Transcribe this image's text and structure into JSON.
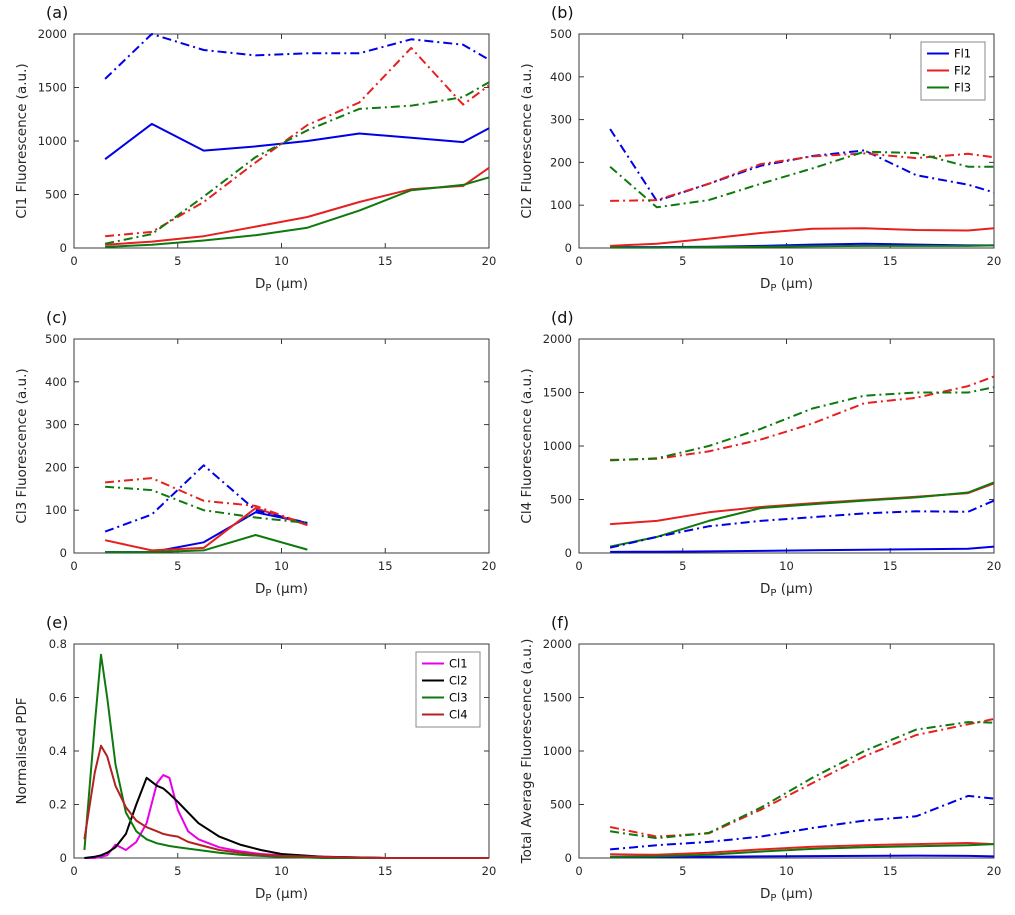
{
  "figure": {
    "background": "#ffffff"
  },
  "palette": {
    "blue": "#0000E6",
    "red": "#E62020",
    "green": "#0E7A0E",
    "magenta": "#E800E8",
    "black": "#000000",
    "darkred": "#B22222"
  },
  "charts": [
    {
      "panel_label": "(a)",
      "type": "line",
      "ylabel": "Cl1 Fluorescence (a.u.)",
      "xlabel_parts": {
        "pre": "D",
        "sub": "P",
        "post": " (μm)"
      },
      "xlim": [
        0,
        20
      ],
      "ylim": [
        0,
        2000
      ],
      "xticks": [
        0,
        5,
        10,
        15,
        20
      ],
      "yticks": [
        0,
        500,
        1000,
        1500,
        2000
      ],
      "x": [
        1.5,
        3.75,
        6.25,
        8.75,
        11.25,
        13.75,
        16.25,
        18.75,
        20
      ],
      "series": [
        {
          "name": "Fl1-solid",
          "color": "#0000E6",
          "style": "solid",
          "values": [
            830,
            1160,
            910,
            950,
            1000,
            1070,
            1030,
            990,
            1120
          ]
        },
        {
          "name": "Fl2-solid",
          "color": "#E62020",
          "style": "solid",
          "values": [
            30,
            60,
            110,
            200,
            290,
            430,
            550,
            580,
            750
          ]
        },
        {
          "name": "Fl3-solid",
          "color": "#0E7A0E",
          "style": "solid",
          "values": [
            10,
            30,
            70,
            120,
            190,
            350,
            540,
            590,
            660
          ]
        },
        {
          "name": "Fl1-dashdot",
          "color": "#0000E6",
          "style": "dashdot",
          "values": [
            1580,
            2000,
            1850,
            1800,
            1820,
            1820,
            1950,
            1900,
            1760
          ]
        },
        {
          "name": "Fl2-dashdot",
          "color": "#E62020",
          "style": "dashdot",
          "values": [
            110,
            150,
            430,
            800,
            1150,
            1360,
            1870,
            1340,
            1520
          ]
        },
        {
          "name": "Fl3-dashdot",
          "color": "#0E7A0E",
          "style": "dashdot",
          "values": [
            40,
            130,
            480,
            850,
            1100,
            1300,
            1330,
            1410,
            1550
          ]
        }
      ],
      "legend": null
    },
    {
      "panel_label": "(b)",
      "type": "line",
      "ylabel": "Cl2 Fluorescence (a.u.)",
      "xlabel_parts": {
        "pre": "D",
        "sub": "P",
        "post": " (μm)"
      },
      "xlim": [
        0,
        20
      ],
      "ylim": [
        0,
        500
      ],
      "xticks": [
        0,
        5,
        10,
        15,
        20
      ],
      "yticks": [
        0,
        100,
        200,
        300,
        400,
        500
      ],
      "x": [
        1.5,
        3.75,
        6.25,
        8.75,
        11.25,
        13.75,
        16.25,
        18.75,
        20
      ],
      "series": [
        {
          "name": "Fl1-solid",
          "color": "#0000E6",
          "style": "solid",
          "values": [
            2,
            2,
            3,
            5,
            8,
            10,
            8,
            6,
            6
          ]
        },
        {
          "name": "Fl2-solid",
          "color": "#E62020",
          "style": "solid",
          "values": [
            5,
            10,
            22,
            35,
            45,
            46,
            42,
            41,
            46
          ]
        },
        {
          "name": "Fl3-solid",
          "color": "#0E7A0E",
          "style": "solid",
          "values": [
            1,
            1,
            2,
            3,
            4,
            5,
            5,
            5,
            6
          ]
        },
        {
          "name": "Fl1-dashdot",
          "color": "#0000E6",
          "style": "dashdot",
          "values": [
            278,
            110,
            150,
            192,
            215,
            228,
            170,
            148,
            130
          ]
        },
        {
          "name": "Fl2-dashdot",
          "color": "#E62020",
          "style": "dashdot",
          "values": [
            110,
            112,
            150,
            196,
            214,
            221,
            210,
            220,
            212
          ]
        },
        {
          "name": "Fl3-dashdot",
          "color": "#0E7A0E",
          "style": "dashdot",
          "values": [
            190,
            95,
            112,
            150,
            186,
            225,
            222,
            190,
            190
          ]
        }
      ],
      "legend": {
        "position": "ne",
        "entries": [
          {
            "label": "Fl1",
            "color": "#0000E6",
            "style": "solid"
          },
          {
            "label": "Fl2",
            "color": "#E62020",
            "style": "solid"
          },
          {
            "label": "Fl3",
            "color": "#0E7A0E",
            "style": "solid"
          }
        ]
      }
    },
    {
      "panel_label": "(c)",
      "type": "line",
      "ylabel": "Cl3 Fluorescence (a.u.)",
      "xlabel_parts": {
        "pre": "D",
        "sub": "P",
        "post": " (μm)"
      },
      "xlim": [
        0,
        20
      ],
      "ylim": [
        0,
        500
      ],
      "xticks": [
        0,
        5,
        10,
        15,
        20
      ],
      "yticks": [
        0,
        100,
        200,
        300,
        400,
        500
      ],
      "x": [
        1.5,
        3.75,
        6.25,
        8.75,
        11.25
      ],
      "series": [
        {
          "name": "Fl1-solid",
          "color": "#0000E6",
          "style": "solid",
          "values": [
            2,
            2,
            25,
            95,
            70
          ]
        },
        {
          "name": "Fl2-solid",
          "color": "#E62020",
          "style": "solid",
          "values": [
            30,
            6,
            12,
            105,
            65
          ]
        },
        {
          "name": "Fl3-solid",
          "color": "#0E7A0E",
          "style": "solid",
          "values": [
            2,
            2,
            6,
            42,
            8
          ]
        },
        {
          "name": "Fl1-dashdot",
          "color": "#0000E6",
          "style": "dashdot",
          "values": [
            50,
            90,
            205,
            100,
            70
          ]
        },
        {
          "name": "Fl2-dashdot",
          "color": "#E62020",
          "style": "dashdot",
          "values": [
            165,
            175,
            122,
            110,
            66
          ]
        },
        {
          "name": "Fl3-dashdot",
          "color": "#0E7A0E",
          "style": "dashdot",
          "values": [
            155,
            147,
            100,
            83,
            70
          ]
        }
      ],
      "legend": null
    },
    {
      "panel_label": "(d)",
      "type": "line",
      "ylabel": "Cl4 Fluorescence (a.u.)",
      "xlabel_parts": {
        "pre": "D",
        "sub": "P",
        "post": " (μm)"
      },
      "xlim": [
        0,
        20
      ],
      "ylim": [
        0,
        2000
      ],
      "xticks": [
        0,
        5,
        10,
        15,
        20
      ],
      "yticks": [
        0,
        500,
        1000,
        1500,
        2000
      ],
      "x": [
        1.5,
        3.75,
        6.25,
        8.75,
        11.25,
        13.75,
        16.25,
        18.75,
        20
      ],
      "series": [
        {
          "name": "Fl1-solid",
          "color": "#0000E6",
          "style": "solid",
          "values": [
            10,
            12,
            15,
            20,
            25,
            30,
            35,
            40,
            60
          ]
        },
        {
          "name": "Fl2-solid",
          "color": "#E62020",
          "style": "solid",
          "values": [
            270,
            300,
            380,
            430,
            465,
            495,
            525,
            560,
            650
          ]
        },
        {
          "name": "Fl3-solid",
          "color": "#0E7A0E",
          "style": "solid",
          "values": [
            60,
            150,
            300,
            420,
            455,
            490,
            520,
            565,
            660
          ]
        },
        {
          "name": "Fl1-dashdot",
          "color": "#0000E6",
          "style": "dashdot",
          "values": [
            50,
            150,
            250,
            300,
            335,
            370,
            390,
            385,
            490
          ]
        },
        {
          "name": "Fl2-dashdot",
          "color": "#E62020",
          "style": "dashdot",
          "values": [
            870,
            880,
            950,
            1060,
            1210,
            1400,
            1450,
            1560,
            1650
          ]
        },
        {
          "name": "Fl3-dashdot",
          "color": "#0E7A0E",
          "style": "dashdot",
          "values": [
            865,
            885,
            1000,
            1160,
            1350,
            1470,
            1500,
            1500,
            1550
          ]
        }
      ],
      "legend": null
    },
    {
      "panel_label": "(e)",
      "type": "line",
      "ylabel": "Normalised PDF",
      "xlabel_parts": {
        "pre": "D",
        "sub": "P",
        "post": " (μm)"
      },
      "xlim": [
        0,
        20
      ],
      "ylim": [
        0,
        0.8
      ],
      "xticks": [
        0,
        5,
        10,
        15,
        20
      ],
      "yticks": [
        0,
        0.2,
        0.4,
        0.6,
        0.8
      ],
      "x": [
        0.5,
        1,
        1.3,
        1.6,
        2,
        2.5,
        3,
        3.5,
        4,
        4.3,
        4.6,
        5,
        5.5,
        6,
        7,
        8,
        9,
        10,
        12,
        15,
        20
      ],
      "series": [
        {
          "name": "Cl1",
          "color": "#E800E8",
          "style": "solid",
          "values": [
            0,
            0,
            0.005,
            0.01,
            0.05,
            0.03,
            0.06,
            0.13,
            0.28,
            0.31,
            0.3,
            0.18,
            0.1,
            0.07,
            0.04,
            0.025,
            0.015,
            0.01,
            0.005,
            0,
            0
          ]
        },
        {
          "name": "Cl2",
          "color": "#000000",
          "style": "solid",
          "values": [
            0,
            0.005,
            0.01,
            0.02,
            0.04,
            0.09,
            0.2,
            0.3,
            0.27,
            0.26,
            0.24,
            0.21,
            0.17,
            0.13,
            0.08,
            0.05,
            0.03,
            0.015,
            0.005,
            0,
            0
          ]
        },
        {
          "name": "Cl3",
          "color": "#0E7A0E",
          "style": "solid",
          "values": [
            0.03,
            0.5,
            0.76,
            0.6,
            0.35,
            0.17,
            0.1,
            0.07,
            0.055,
            0.05,
            0.045,
            0.04,
            0.035,
            0.03,
            0.02,
            0.012,
            0.008,
            0.005,
            0,
            0,
            0
          ]
        },
        {
          "name": "Cl4",
          "color": "#B22222",
          "style": "solid",
          "values": [
            0.07,
            0.32,
            0.42,
            0.38,
            0.27,
            0.19,
            0.14,
            0.115,
            0.1,
            0.09,
            0.085,
            0.08,
            0.06,
            0.05,
            0.03,
            0.02,
            0.012,
            0.008,
            0.004,
            0,
            0
          ]
        }
      ],
      "legend": {
        "position": "ne",
        "entries": [
          {
            "label": "Cl1",
            "color": "#E800E8",
            "style": "solid"
          },
          {
            "label": "Cl2",
            "color": "#000000",
            "style": "solid"
          },
          {
            "label": "Cl3",
            "color": "#0E7A0E",
            "style": "solid"
          },
          {
            "label": "Cl4",
            "color": "#B22222",
            "style": "solid"
          }
        ]
      }
    },
    {
      "panel_label": "(f)",
      "type": "line",
      "ylabel": "Total Average Fluorescence (a.u.)",
      "xlabel_parts": {
        "pre": "D",
        "sub": "P",
        "post": " (μm)"
      },
      "xlim": [
        0,
        20
      ],
      "ylim": [
        0,
        2000
      ],
      "xticks": [
        0,
        5,
        10,
        15,
        20
      ],
      "yticks": [
        0,
        500,
        1000,
        1500,
        2000
      ],
      "x": [
        1.5,
        3.75,
        6.25,
        8.75,
        11.25,
        13.75,
        16.25,
        18.75,
        20
      ],
      "series": [
        {
          "name": "Fl1-solid",
          "color": "#0000E6",
          "style": "solid",
          "values": [
            10,
            10,
            12,
            15,
            18,
            20,
            22,
            20,
            15
          ]
        },
        {
          "name": "Fl2-solid",
          "color": "#E62020",
          "style": "solid",
          "values": [
            35,
            30,
            50,
            80,
            105,
            120,
            130,
            140,
            130
          ]
        },
        {
          "name": "Fl3-solid",
          "color": "#0E7A0E",
          "style": "solid",
          "values": [
            10,
            15,
            30,
            60,
            85,
            100,
            110,
            120,
            130
          ]
        },
        {
          "name": "Fl1-dashdot",
          "color": "#0000E6",
          "style": "dashdot",
          "values": [
            80,
            120,
            150,
            200,
            280,
            350,
            390,
            580,
            555
          ]
        },
        {
          "name": "Fl2-dashdot",
          "color": "#E62020",
          "style": "dashdot",
          "values": [
            290,
            200,
            230,
            450,
            700,
            950,
            1150,
            1250,
            1300
          ]
        },
        {
          "name": "Fl3-dashdot",
          "color": "#0E7A0E",
          "style": "dashdot",
          "values": [
            250,
            185,
            235,
            470,
            750,
            1000,
            1200,
            1270,
            1265
          ]
        }
      ],
      "legend": null
    }
  ]
}
